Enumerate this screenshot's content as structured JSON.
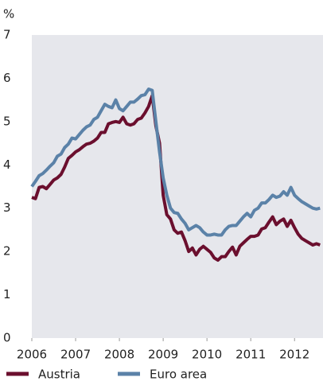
{
  "chart_data": {
    "type": "line",
    "y_unit": "%",
    "x": [
      2006,
      2006.083,
      2006.167,
      2006.25,
      2006.333,
      2006.417,
      2006.5,
      2006.583,
      2006.667,
      2006.75,
      2006.833,
      2006.917,
      2007,
      2007.083,
      2007.167,
      2007.25,
      2007.333,
      2007.417,
      2007.5,
      2007.583,
      2007.667,
      2007.75,
      2007.833,
      2007.917,
      2008,
      2008.083,
      2008.167,
      2008.25,
      2008.333,
      2008.417,
      2008.5,
      2008.583,
      2008.667,
      2008.75,
      2008.833,
      2008.917,
      2009,
      2009.083,
      2009.167,
      2009.25,
      2009.333,
      2009.417,
      2009.5,
      2009.583,
      2009.667,
      2009.75,
      2009.833,
      2009.917,
      2010,
      2010.083,
      2010.167,
      2010.25,
      2010.333,
      2010.417,
      2010.5,
      2010.583,
      2010.667,
      2010.75,
      2010.833,
      2010.917,
      2011,
      2011.083,
      2011.167,
      2011.25,
      2011.333,
      2011.417,
      2011.5,
      2011.583,
      2011.667,
      2011.75,
      2011.833,
      2011.917,
      2012,
      2012.083,
      2012.167,
      2012.25,
      2012.333,
      2012.417,
      2012.5,
      2012.583
    ],
    "series": [
      {
        "name": "Austria",
        "color": "#6b0f2e",
        "values": [
          3.25,
          3.22,
          3.48,
          3.5,
          3.45,
          3.55,
          3.65,
          3.7,
          3.78,
          3.95,
          4.15,
          4.22,
          4.3,
          4.35,
          4.42,
          4.48,
          4.5,
          4.55,
          4.62,
          4.75,
          4.75,
          4.95,
          4.98,
          5.0,
          4.98,
          5.1,
          4.95,
          4.92,
          4.95,
          5.05,
          5.08,
          5.2,
          5.35,
          5.6,
          4.9,
          4.5,
          3.3,
          2.85,
          2.75,
          2.5,
          2.42,
          2.45,
          2.25,
          2.0,
          2.08,
          1.92,
          2.05,
          2.12,
          2.05,
          1.98,
          1.85,
          1.8,
          1.88,
          1.88,
          2.0,
          2.1,
          1.92,
          2.12,
          2.2,
          2.28,
          2.35,
          2.35,
          2.38,
          2.52,
          2.55,
          2.68,
          2.8,
          2.62,
          2.7,
          2.75,
          2.58,
          2.72,
          2.55,
          2.4,
          2.3,
          2.25,
          2.2,
          2.15,
          2.18,
          2.15
        ]
      },
      {
        "name": "Euro area",
        "color": "#5b82a8",
        "values": [
          3.5,
          3.62,
          3.75,
          3.8,
          3.88,
          3.97,
          4.05,
          4.2,
          4.25,
          4.4,
          4.48,
          4.62,
          4.6,
          4.7,
          4.8,
          4.88,
          4.92,
          5.05,
          5.1,
          5.25,
          5.4,
          5.35,
          5.32,
          5.5,
          5.3,
          5.25,
          5.35,
          5.45,
          5.45,
          5.52,
          5.6,
          5.62,
          5.75,
          5.72,
          5.0,
          4.3,
          3.7,
          3.3,
          3.0,
          2.9,
          2.88,
          2.75,
          2.65,
          2.5,
          2.55,
          2.6,
          2.55,
          2.45,
          2.38,
          2.38,
          2.4,
          2.38,
          2.38,
          2.5,
          2.58,
          2.6,
          2.6,
          2.7,
          2.8,
          2.88,
          2.8,
          2.95,
          3.0,
          3.12,
          3.12,
          3.2,
          3.3,
          3.25,
          3.28,
          3.38,
          3.3,
          3.48,
          3.3,
          3.22,
          3.15,
          3.1,
          3.05,
          3.0,
          2.98,
          3.0
        ]
      }
    ],
    "xlim": [
      2006,
      2012.65
    ],
    "xticks": [
      2006,
      2007,
      2008,
      2009,
      2010,
      2011,
      2012
    ],
    "ylim": [
      0,
      7
    ],
    "yticks": [
      0,
      1,
      2,
      3,
      4,
      5,
      6,
      7
    ],
    "grid": false,
    "background": "#e6e7ec"
  }
}
